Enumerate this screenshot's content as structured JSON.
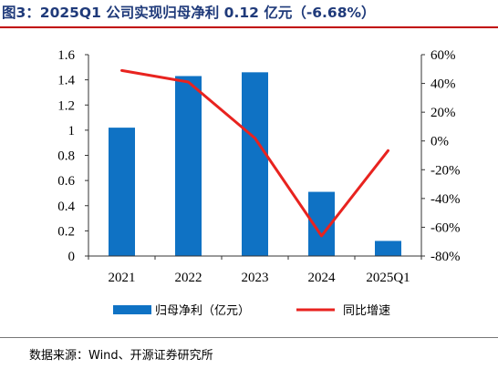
{
  "header": {
    "title": "图3：2025Q1 公司实现归母净利 0.12 亿元（-6.68%）"
  },
  "footer": {
    "source": "数据来源：Wind、开源证券研究所"
  },
  "chart_data": {
    "type": "bar",
    "title": "图3：2025Q1 公司实现归母净利 0.12 亿元（-6.68%）",
    "categories": [
      "2021",
      "2022",
      "2023",
      "2024",
      "2025Q1"
    ],
    "series": [
      {
        "name": "归母净利（亿元）",
        "type": "bar",
        "axis": "left",
        "values": [
          1.02,
          1.43,
          1.46,
          0.51,
          0.12
        ],
        "color": "#0f72c4"
      },
      {
        "name": "同比增速",
        "type": "line",
        "axis": "right",
        "values": [
          49,
          41,
          2,
          -66,
          -6.68
        ],
        "color": "#e8231f"
      }
    ],
    "ylim_left": [
      0,
      1.6
    ],
    "yticks_left": [
      "0",
      "0.2",
      "0.4",
      "0.6",
      "0.8",
      "1",
      "1.2",
      "1.4",
      "1.6"
    ],
    "ylim_right": [
      -80,
      60
    ],
    "yticks_right": [
      "-80%",
      "-60%",
      "-40%",
      "-20%",
      "0%",
      "20%",
      "40%",
      "60%"
    ],
    "grid": false,
    "legend_position": "bottom"
  }
}
